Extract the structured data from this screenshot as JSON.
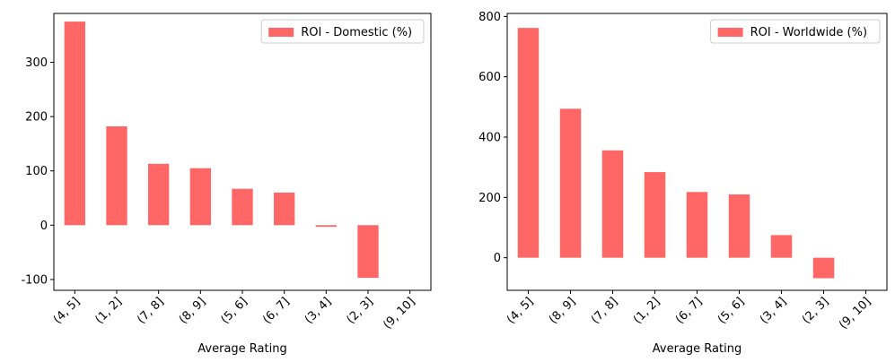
{
  "chart_data": [
    {
      "type": "bar",
      "categories": [
        "(4, 5]",
        "(1, 2]",
        "(7, 8]",
        "(8, 9]",
        "(5, 6]",
        "(6, 7]",
        "(3, 4]",
        "(2, 3]",
        "(9, 10]"
      ],
      "series": [
        {
          "name": "ROI - Domestic (%)",
          "values": [
            375,
            182,
            113,
            105,
            67,
            60,
            -3,
            -97,
            null
          ]
        }
      ],
      "color": "#ff6666",
      "xlabel": "Average Rating",
      "ylabel": "",
      "ylim": [
        -120,
        390
      ],
      "yticks": [
        -100,
        0,
        100,
        200,
        300
      ],
      "legend": "top-right",
      "grid": false
    },
    {
      "type": "bar",
      "categories": [
        "(4, 5]",
        "(8, 9]",
        "(7, 8]",
        "(1, 2]",
        "(6, 7]",
        "(5, 6]",
        "(3, 4]",
        "(2, 3]",
        "(9, 10]"
      ],
      "series": [
        {
          "name": "ROI - Worldwide (%)",
          "values": [
            762,
            494,
            356,
            284,
            218,
            210,
            75,
            -68,
            null
          ]
        }
      ],
      "color": "#ff6666",
      "xlabel": "Average Rating",
      "ylabel": "",
      "ylim": [
        -108,
        810
      ],
      "yticks": [
        0,
        200,
        400,
        600,
        800
      ],
      "legend": "top-right",
      "grid": false
    }
  ]
}
